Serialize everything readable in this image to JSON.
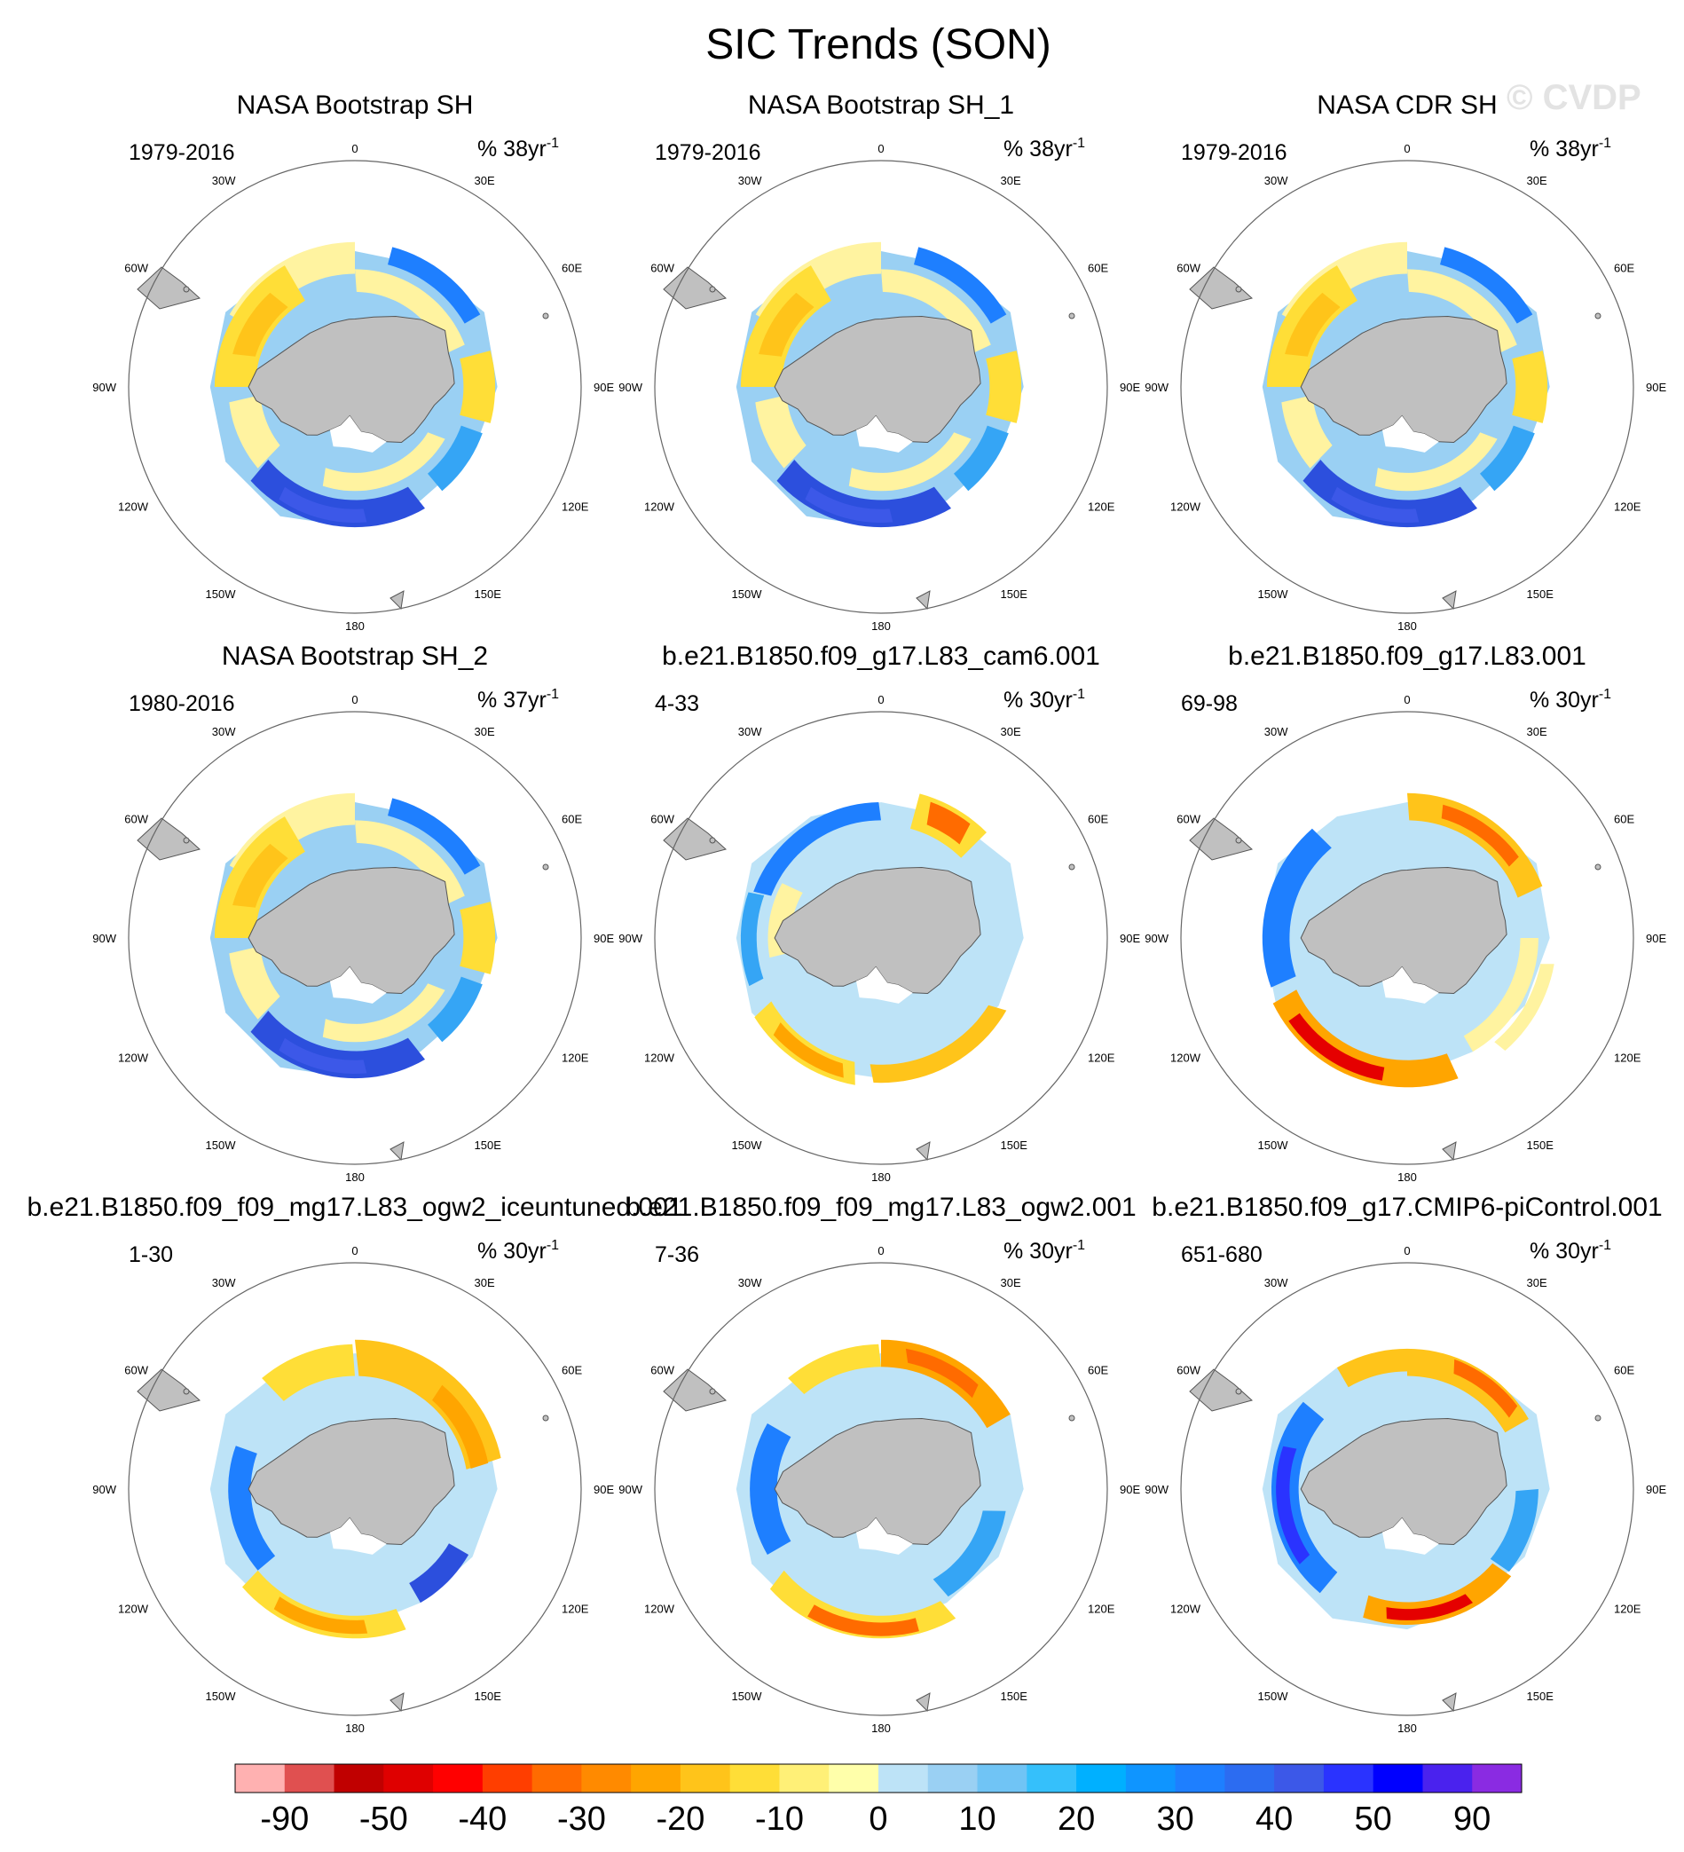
{
  "figure": {
    "title": "SIC Trends (SON)",
    "watermark": "© CVDP"
  },
  "lon_labels": [
    "0",
    "30E",
    "60E",
    "90E",
    "120E",
    "150E",
    "180",
    "150W",
    "120W",
    "90W",
    "60W",
    "30W"
  ],
  "colors": {
    "land": "#c0c0c0",
    "grid": "#666666",
    "colorbar": [
      "#ffb1b1",
      "#e05050",
      "#c00000",
      "#df0000",
      "#ff0000",
      "#ff3e00",
      "#ff6b00",
      "#ff8a00",
      "#ffa500",
      "#ffc41a",
      "#ffde37",
      "#fff077",
      "#ffffaa",
      "#bde3f7",
      "#9ad0f3",
      "#70c4f5",
      "#35c0fb",
      "#00b0ff",
      "#0f95ff",
      "#1e7fff",
      "#2c6cf1",
      "#3c58e8",
      "#2a33ff",
      "#0000ff",
      "#4a22ee",
      "#8a2be2"
    ]
  },
  "chart_data": {
    "type": "polar-map-panels",
    "subtitle_left_field": "years",
    "units_template": "% 38yr-1",
    "panels": [
      {
        "name": "NASA Bootstrap SH",
        "years": "1979-2016",
        "units_prefix": "% 38yr",
        "units_sup": "-1",
        "pattern": "obs"
      },
      {
        "name": "NASA Bootstrap SH_1",
        "years": "1979-2016",
        "units_prefix": "% 38yr",
        "units_sup": "-1",
        "pattern": "obs"
      },
      {
        "name": "NASA CDR SH",
        "years": "1979-2016",
        "units_prefix": "% 38yr",
        "units_sup": "-1",
        "pattern": "obs"
      },
      {
        "name": "NASA Bootstrap SH_2",
        "years": "1980-2016",
        "units_prefix": "% 37yr",
        "units_sup": "-1",
        "pattern": "obs"
      },
      {
        "name": "b.e21.B1850.f09_g17.L83_cam6.001",
        "years": "4-33",
        "units_prefix": "% 30yr",
        "units_sup": "-1",
        "pattern": "m1"
      },
      {
        "name": "b.e21.B1850.f09_g17.L83.001",
        "years": "69-98",
        "units_prefix": "% 30yr",
        "units_sup": "-1",
        "pattern": "m2"
      },
      {
        "name": "b.e21.B1850.f09_f09_mg17.L83_ogw2_iceuntuned.001",
        "years": "1-30",
        "units_prefix": "% 30yr",
        "units_sup": "-1",
        "pattern": "m3"
      },
      {
        "name": "b.e21.B1850.f09_f09_mg17.L83_ogw2.001",
        "years": "7-36",
        "units_prefix": "% 30yr",
        "units_sup": "-1",
        "pattern": "m4"
      },
      {
        "name": "b.e21.B1850.f09_g17.CMIP6-piControl.001",
        "years": "651-680",
        "units_prefix": "% 30yr",
        "units_sup": "-1",
        "pattern": "m5"
      }
    ],
    "colorbar": {
      "labels": [
        "-90",
        "-50",
        "-40",
        "-30",
        "-20",
        "-10",
        "0",
        "10",
        "20",
        "30",
        "40",
        "50",
        "90"
      ],
      "n_boxes": 26
    }
  }
}
